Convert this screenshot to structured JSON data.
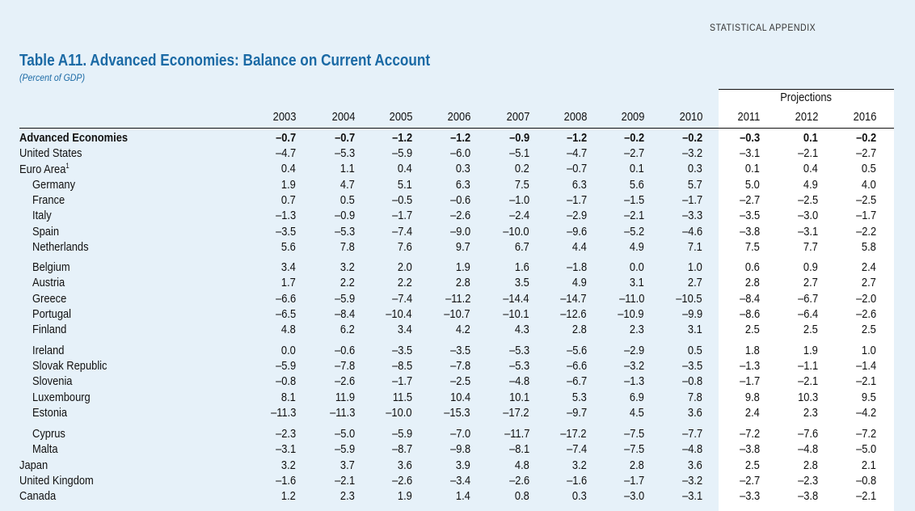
{
  "header": {
    "section": "STATISTICAL APPENDIX",
    "title": "Table A11. Advanced Economies: Balance on Current Account",
    "subtitle": "(Percent of GDP)",
    "projections_label": "Projections"
  },
  "years": [
    "2003",
    "2004",
    "2005",
    "2006",
    "2007",
    "2008",
    "2009",
    "2010",
    "2011",
    "2012",
    "2016"
  ],
  "rows": [
    {
      "label": "Advanced Economies",
      "bold": true,
      "indent": 0,
      "values": [
        "–0.7",
        "–0.7",
        "–1.2",
        "–1.2",
        "–0.9",
        "–1.2",
        "–0.2",
        "–0.2",
        "–0.3",
        "0.1",
        "–0.2"
      ]
    },
    {
      "label": "United States",
      "indent": 0,
      "values": [
        "–4.7",
        "–5.3",
        "–5.9",
        "–6.0",
        "–5.1",
        "–4.7",
        "–2.7",
        "–3.2",
        "–3.1",
        "–2.1",
        "–2.7"
      ]
    },
    {
      "label": "Euro Area",
      "sup": "1",
      "indent": 0,
      "values": [
        "0.4",
        "1.1",
        "0.4",
        "0.3",
        "0.2",
        "–0.7",
        "0.1",
        "0.3",
        "0.1",
        "0.4",
        "0.5"
      ]
    },
    {
      "label": "Germany",
      "indent": 1,
      "values": [
        "1.9",
        "4.7",
        "5.1",
        "6.3",
        "7.5",
        "6.3",
        "5.6",
        "5.7",
        "5.0",
        "4.9",
        "4.0"
      ]
    },
    {
      "label": "France",
      "indent": 1,
      "values": [
        "0.7",
        "0.5",
        "–0.5",
        "–0.6",
        "–1.0",
        "–1.7",
        "–1.5",
        "–1.7",
        "–2.7",
        "–2.5",
        "–2.5"
      ]
    },
    {
      "label": "Italy",
      "indent": 1,
      "values": [
        "–1.3",
        "–0.9",
        "–1.7",
        "–2.6",
        "–2.4",
        "–2.9",
        "–2.1",
        "–3.3",
        "–3.5",
        "–3.0",
        "–1.7"
      ]
    },
    {
      "label": "Spain",
      "indent": 1,
      "values": [
        "–3.5",
        "–5.3",
        "–7.4",
        "–9.0",
        "–10.0",
        "–9.6",
        "–5.2",
        "–4.6",
        "–3.8",
        "–3.1",
        "–2.2"
      ]
    },
    {
      "label": "Netherlands",
      "indent": 1,
      "values": [
        "5.6",
        "7.8",
        "7.6",
        "9.7",
        "6.7",
        "4.4",
        "4.9",
        "7.1",
        "7.5",
        "7.7",
        "5.8"
      ]
    },
    {
      "label": "Belgium",
      "indent": 1,
      "gap": true,
      "values": [
        "3.4",
        "3.2",
        "2.0",
        "1.9",
        "1.6",
        "–1.8",
        "0.0",
        "1.0",
        "0.6",
        "0.9",
        "2.4"
      ]
    },
    {
      "label": "Austria",
      "indent": 1,
      "values": [
        "1.7",
        "2.2",
        "2.2",
        "2.8",
        "3.5",
        "4.9",
        "3.1",
        "2.7",
        "2.8",
        "2.7",
        "2.7"
      ]
    },
    {
      "label": "Greece",
      "indent": 1,
      "values": [
        "–6.6",
        "–5.9",
        "–7.4",
        "–11.2",
        "–14.4",
        "–14.7",
        "–11.0",
        "–10.5",
        "–8.4",
        "–6.7",
        "–2.0"
      ]
    },
    {
      "label": "Portugal",
      "indent": 1,
      "values": [
        "–6.5",
        "–8.4",
        "–10.4",
        "–10.7",
        "–10.1",
        "–12.6",
        "–10.9",
        "–9.9",
        "–8.6",
        "–6.4",
        "–2.6"
      ]
    },
    {
      "label": "Finland",
      "indent": 1,
      "values": [
        "4.8",
        "6.2",
        "3.4",
        "4.2",
        "4.3",
        "2.8",
        "2.3",
        "3.1",
        "2.5",
        "2.5",
        "2.5"
      ]
    },
    {
      "label": "Ireland",
      "indent": 1,
      "gap": true,
      "values": [
        "0.0",
        "–0.6",
        "–3.5",
        "–3.5",
        "–5.3",
        "–5.6",
        "–2.9",
        "0.5",
        "1.8",
        "1.9",
        "1.0"
      ]
    },
    {
      "label": "Slovak Republic",
      "indent": 1,
      "values": [
        "–5.9",
        "–7.8",
        "–8.5",
        "–7.8",
        "–5.3",
        "–6.6",
        "–3.2",
        "–3.5",
        "–1.3",
        "–1.1",
        "–1.4"
      ]
    },
    {
      "label": "Slovenia",
      "indent": 1,
      "values": [
        "–0.8",
        "–2.6",
        "–1.7",
        "–2.5",
        "–4.8",
        "–6.7",
        "–1.3",
        "–0.8",
        "–1.7",
        "–2.1",
        "–2.1"
      ]
    },
    {
      "label": "Luxembourg",
      "indent": 1,
      "values": [
        "8.1",
        "11.9",
        "11.5",
        "10.4",
        "10.1",
        "5.3",
        "6.9",
        "7.8",
        "9.8",
        "10.3",
        "9.5"
      ]
    },
    {
      "label": "Estonia",
      "indent": 1,
      "values": [
        "–11.3",
        "–11.3",
        "–10.0",
        "–15.3",
        "–17.2",
        "–9.7",
        "4.5",
        "3.6",
        "2.4",
        "2.3",
        "–4.2"
      ]
    },
    {
      "label": "Cyprus",
      "indent": 1,
      "gap": true,
      "values": [
        "–2.3",
        "–5.0",
        "–5.9",
        "–7.0",
        "–11.7",
        "–17.2",
        "–7.5",
        "–7.7",
        "–7.2",
        "–7.6",
        "–7.2"
      ]
    },
    {
      "label": "Malta",
      "indent": 1,
      "values": [
        "–3.1",
        "–5.9",
        "–8.7",
        "–9.8",
        "–8.1",
        "–7.4",
        "–7.5",
        "–4.8",
        "–3.8",
        "–4.8",
        "–5.0"
      ]
    },
    {
      "label": "Japan",
      "indent": 0,
      "values": [
        "3.2",
        "3.7",
        "3.6",
        "3.9",
        "4.8",
        "3.2",
        "2.8",
        "3.6",
        "2.5",
        "2.8",
        "2.1"
      ]
    },
    {
      "label": "United Kingdom",
      "indent": 0,
      "values": [
        "–1.6",
        "–2.1",
        "–2.6",
        "–3.4",
        "–2.6",
        "–1.6",
        "–1.7",
        "–3.2",
        "–2.7",
        "–2.3",
        "–0.8"
      ]
    },
    {
      "label": "Canada",
      "indent": 0,
      "values": [
        "1.2",
        "2.3",
        "1.9",
        "1.4",
        "0.8",
        "0.3",
        "–3.0",
        "–3.1",
        "–3.3",
        "–3.8",
        "–2.1"
      ]
    }
  ]
}
